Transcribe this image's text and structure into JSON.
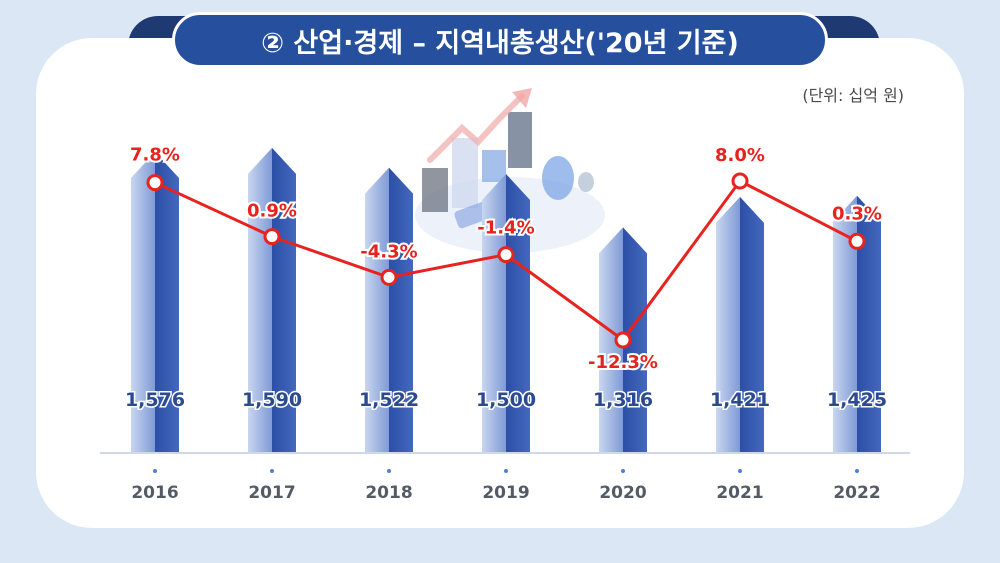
{
  "title": "② 산업·경제 – 지역내총생산('20년 기준)",
  "unit_label": "(단위: 십억 원)",
  "colors": {
    "bar_light": "#b9c9ea",
    "bar_dark": "#3559b0",
    "line": "#e8231f",
    "label_red": "#e8231f",
    "value_text": "#2b4a8f",
    "axis": "#cfd8e8"
  },
  "chart_data": {
    "type": "bar",
    "categories": [
      "2016",
      "2017",
      "2018",
      "2019",
      "2020",
      "2021",
      "2022"
    ],
    "series": [
      {
        "type": "bar",
        "values": [
          1576,
          1590,
          1522,
          1500,
          1316,
          1421,
          1425
        ],
        "labels": [
          "1,576",
          "1,590",
          "1,522",
          "1,500",
          "1,316",
          "1,421",
          "1,425"
        ]
      },
      {
        "type": "line",
        "values": [
          7.8,
          0.9,
          -4.3,
          -1.4,
          -12.3,
          8.0,
          0.3
        ],
        "labels": [
          "7.8%",
          "0.9%",
          "-4.3%",
          "-1.4%",
          "-12.3%",
          "8.0%",
          "0.3%"
        ]
      }
    ],
    "grid": false,
    "legend": "none"
  }
}
